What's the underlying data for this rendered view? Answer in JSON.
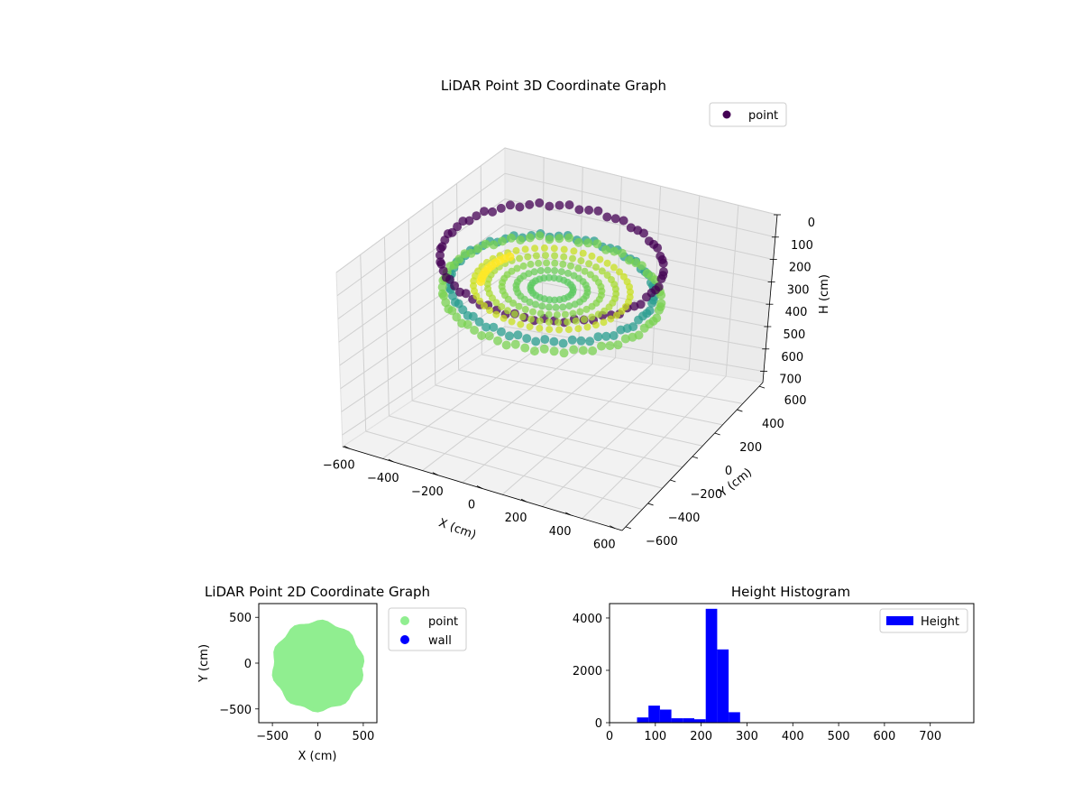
{
  "chart_data": [
    {
      "type": "scatter",
      "projection": "3d",
      "title": "LiDAR Point 3D Coordinate Graph",
      "xlabel": "X (cm)",
      "ylabel": "Y (cm)",
      "zlabel": "H (cm)",
      "x_ticks": [
        "−600",
        "−400",
        "−200",
        "0",
        "200",
        "400",
        "600"
      ],
      "y_ticks": [
        "−600",
        "−400",
        "−200",
        "0",
        "200",
        "400",
        "600"
      ],
      "z_ticks": [
        "0",
        "100",
        "200",
        "300",
        "400",
        "500",
        "600",
        "700"
      ],
      "xlim": [
        -600,
        600
      ],
      "ylim": [
        -600,
        600
      ],
      "zlim": [
        0,
        750
      ],
      "z_inverted": true,
      "grid": true,
      "colormap": "viridis",
      "legend": {
        "entries": [
          {
            "label": "point",
            "color": "#440154"
          }
        ],
        "placement": "top-right"
      },
      "series": [
        {
          "name": "point",
          "description_rings": [
            {
              "radius_cm": 470,
              "height_cm": 100,
              "color": "#440154"
            },
            {
              "radius_cm": 430,
              "height_cm": 230,
              "color": "#2a9d8f"
            },
            {
              "radius_cm": 460,
              "height_cm": 260,
              "color": "#7ad151"
            },
            {
              "radius_cm": 280,
              "height_cm": 240,
              "color": "#b5de2b"
            }
          ]
        }
      ]
    },
    {
      "type": "scatter",
      "title": "LiDAR Point 2D Coordinate Graph",
      "xlabel": "X (cm)",
      "ylabel": "Y (cm)",
      "x_ticks": [
        "−500",
        "0",
        "500"
      ],
      "y_ticks": [
        "500",
        "0",
        "−500"
      ],
      "xlim": [
        -650,
        650
      ],
      "ylim": [
        -650,
        650
      ],
      "grid": false,
      "legend": {
        "placement": "outside-right",
        "entries": [
          {
            "label": "point",
            "color": "#90ee90"
          },
          {
            "label": "wall",
            "color": "#0000ff"
          }
        ]
      },
      "series": [
        {
          "name": "point",
          "color": "#90ee90",
          "shape": "disk",
          "center": [
            0,
            -30
          ],
          "radius_cm": 480
        },
        {
          "name": "wall",
          "color": "#0000ff",
          "values": []
        }
      ]
    },
    {
      "type": "bar",
      "title": "Height Histogram",
      "x_ticks": [
        "0",
        "100",
        "200",
        "300",
        "400",
        "500",
        "600",
        "700"
      ],
      "y_ticks": [
        "0",
        "2000",
        "4000"
      ],
      "xlim": [
        0,
        795
      ],
      "ylim": [
        0,
        4550
      ],
      "color": "#0000ff",
      "legend": {
        "placement": "top-right",
        "entries": [
          {
            "label": "Height",
            "color": "#0000ff"
          }
        ]
      },
      "bin_width": 25,
      "series": [
        {
          "name": "Height",
          "bins": [
            {
              "start": 60,
              "value": 200
            },
            {
              "start": 85,
              "value": 650
            },
            {
              "start": 110,
              "value": 500
            },
            {
              "start": 135,
              "value": 170
            },
            {
              "start": 160,
              "value": 170
            },
            {
              "start": 185,
              "value": 130
            },
            {
              "start": 210,
              "value": 4350
            },
            {
              "start": 235,
              "value": 2800
            },
            {
              "start": 260,
              "value": 400
            }
          ]
        }
      ]
    }
  ]
}
